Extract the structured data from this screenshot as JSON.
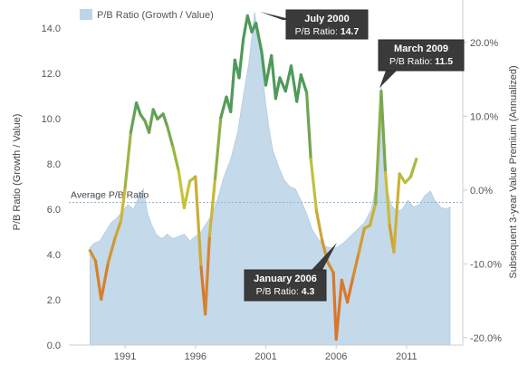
{
  "chart_data": {
    "type": "area",
    "legend": {
      "label": "P/B Ratio (Growth / Value)",
      "position": "top-left",
      "color": "#bed5e8"
    },
    "ylabel_left": "P/B Ratio (Growth / Value)",
    "ylabel_right": "Subsequent 3-year Value Premium (Annualized)",
    "ylim_left": [
      0,
      15
    ],
    "ylim_right": [
      -21,
      25
    ],
    "left_ticks": [
      "0.0",
      "2.0",
      "4.0",
      "6.0",
      "8.0",
      "10.0",
      "12.0",
      "14.0"
    ],
    "right_ticks": [
      "-20.0%",
      "-10.0%",
      "0.0%",
      "10.0%",
      "20.0%"
    ],
    "x_ticks": [
      "1991",
      "1996",
      "2001",
      "2006",
      "2011"
    ],
    "xlim": [
      1987,
      2015
    ],
    "grid": false,
    "average": {
      "label": "Average P/B Ratio",
      "value": 6.3
    },
    "colors": {
      "area": "#bed5e8",
      "line_high": "#4e9a5a",
      "line_mid": "#c7c33a",
      "line_low": "#d9772a",
      "avg": "#8ab8d8"
    },
    "series": [
      {
        "name": "P/B Ratio (Growth / Value)",
        "axis": "left",
        "kind": "area",
        "points": [
          [
            1988.5,
            4.3
          ],
          [
            1988.8,
            4.5
          ],
          [
            1989.2,
            4.6
          ],
          [
            1989.6,
            5.0
          ],
          [
            1990.0,
            5.4
          ],
          [
            1990.4,
            5.6
          ],
          [
            1990.8,
            5.9
          ],
          [
            1991.2,
            6.2
          ],
          [
            1991.6,
            6.0
          ],
          [
            1992.0,
            6.6
          ],
          [
            1992.3,
            6.9
          ],
          [
            1992.6,
            5.8
          ],
          [
            1992.9,
            5.3
          ],
          [
            1993.2,
            4.9
          ],
          [
            1993.6,
            4.7
          ],
          [
            1994.0,
            4.9
          ],
          [
            1994.4,
            4.7
          ],
          [
            1994.8,
            4.8
          ],
          [
            1995.2,
            4.9
          ],
          [
            1995.6,
            4.6
          ],
          [
            1996.0,
            4.8
          ],
          [
            1996.4,
            5.0
          ],
          [
            1996.8,
            5.4
          ],
          [
            1997.2,
            5.8
          ],
          [
            1997.6,
            6.5
          ],
          [
            1998.0,
            7.4
          ],
          [
            1998.5,
            8.2
          ],
          [
            1999.0,
            9.4
          ],
          [
            1999.4,
            11.0
          ],
          [
            1999.8,
            12.5
          ],
          [
            2000.2,
            14.7
          ],
          [
            2000.6,
            13.2
          ],
          [
            2000.9,
            11.2
          ],
          [
            2001.2,
            9.7
          ],
          [
            2001.5,
            8.6
          ],
          [
            2001.9,
            7.9
          ],
          [
            2002.3,
            7.3
          ],
          [
            2002.7,
            7.0
          ],
          [
            2003.1,
            6.9
          ],
          [
            2003.5,
            6.4
          ],
          [
            2003.9,
            5.8
          ],
          [
            2004.3,
            5.1
          ],
          [
            2004.7,
            4.7
          ],
          [
            2005.1,
            4.4
          ],
          [
            2005.6,
            4.3
          ],
          [
            2006.0,
            4.3
          ],
          [
            2006.5,
            4.5
          ],
          [
            2007.0,
            4.8
          ],
          [
            2007.5,
            5.1
          ],
          [
            2008.0,
            5.4
          ],
          [
            2008.5,
            6.0
          ],
          [
            2008.9,
            7.3
          ],
          [
            2009.2,
            11.5
          ],
          [
            2009.5,
            7.2
          ],
          [
            2009.9,
            6.2
          ],
          [
            2010.3,
            5.9
          ],
          [
            2010.7,
            6.0
          ],
          [
            2011.1,
            6.4
          ],
          [
            2011.5,
            6.1
          ],
          [
            2011.9,
            6.2
          ],
          [
            2012.3,
            6.6
          ],
          [
            2012.7,
            6.8
          ],
          [
            2013.0,
            6.4
          ],
          [
            2013.4,
            6.1
          ],
          [
            2013.8,
            6.0
          ],
          [
            2014.1,
            6.1
          ]
        ]
      },
      {
        "name": "Subsequent 3-year Value Premium (Annualized)",
        "axis": "right",
        "kind": "line",
        "points": [
          [
            1988.5,
            -8.2
          ],
          [
            1988.9,
            -9.6
          ],
          [
            1989.3,
            -14.8
          ],
          [
            1989.8,
            -9.8
          ],
          [
            1990.3,
            -6.4
          ],
          [
            1990.7,
            -4.2
          ],
          [
            1991.0,
            0.3
          ],
          [
            1991.4,
            7.8
          ],
          [
            1991.8,
            11.8
          ],
          [
            1992.1,
            10.2
          ],
          [
            1992.4,
            9.4
          ],
          [
            1992.7,
            7.8
          ],
          [
            1993.0,
            10.9
          ],
          [
            1993.3,
            9.6
          ],
          [
            1993.7,
            10.3
          ],
          [
            1994.0,
            8.6
          ],
          [
            1994.4,
            5.8
          ],
          [
            1994.8,
            2.6
          ],
          [
            1995.2,
            -2.4
          ],
          [
            1995.6,
            1.2
          ],
          [
            1996.0,
            1.8
          ],
          [
            1996.4,
            -10.4
          ],
          [
            1996.7,
            -16.8
          ],
          [
            1997.0,
            -6.2
          ],
          [
            1997.4,
            1.6
          ],
          [
            1997.8,
            9.8
          ],
          [
            1998.2,
            12.6
          ],
          [
            1998.5,
            10.6
          ],
          [
            1998.8,
            17.6
          ],
          [
            1999.1,
            15.2
          ],
          [
            1999.4,
            20.4
          ],
          [
            1999.7,
            23.6
          ],
          [
            2000.0,
            21.4
          ],
          [
            2000.3,
            22.6
          ],
          [
            2000.7,
            18.8
          ],
          [
            2001.0,
            14.2
          ],
          [
            2001.4,
            18.2
          ],
          [
            2001.7,
            12.4
          ],
          [
            2002.0,
            15.2
          ],
          [
            2002.4,
            13.4
          ],
          [
            2002.8,
            16.8
          ],
          [
            2003.2,
            12.0
          ],
          [
            2003.5,
            15.6
          ],
          [
            2003.9,
            13.2
          ],
          [
            2004.2,
            4.2
          ],
          [
            2004.6,
            -2.8
          ],
          [
            2005.0,
            -6.8
          ],
          [
            2005.4,
            -9.8
          ],
          [
            2005.8,
            -11.2
          ],
          [
            2006.0,
            -20.2
          ],
          [
            2006.4,
            -12.2
          ],
          [
            2006.8,
            -15.2
          ],
          [
            2007.2,
            -11.8
          ],
          [
            2007.6,
            -8.6
          ],
          [
            2008.0,
            -5.2
          ],
          [
            2008.4,
            -4.8
          ],
          [
            2008.8,
            -1.8
          ],
          [
            2009.2,
            13.4
          ],
          [
            2009.5,
            2.4
          ],
          [
            2009.8,
            -4.8
          ],
          [
            2010.1,
            -8.4
          ],
          [
            2010.5,
            2.2
          ],
          [
            2010.9,
            1.0
          ],
          [
            2011.3,
            1.8
          ],
          [
            2011.7,
            4.2
          ]
        ]
      }
    ],
    "annotations": [
      {
        "title": "July 2000",
        "label": "P/B Ratio:",
        "value": "14.7",
        "x": 2000.4,
        "y": 14.7
      },
      {
        "title": "March 2009",
        "label": "P/B Ratio:",
        "value": "11.5",
        "x": 2009.2,
        "y": 11.5
      },
      {
        "title": "January 2006",
        "label": "P/B Ratio:",
        "value": "4.3",
        "x": 2005.8,
        "y": 4.3
      }
    ]
  }
}
